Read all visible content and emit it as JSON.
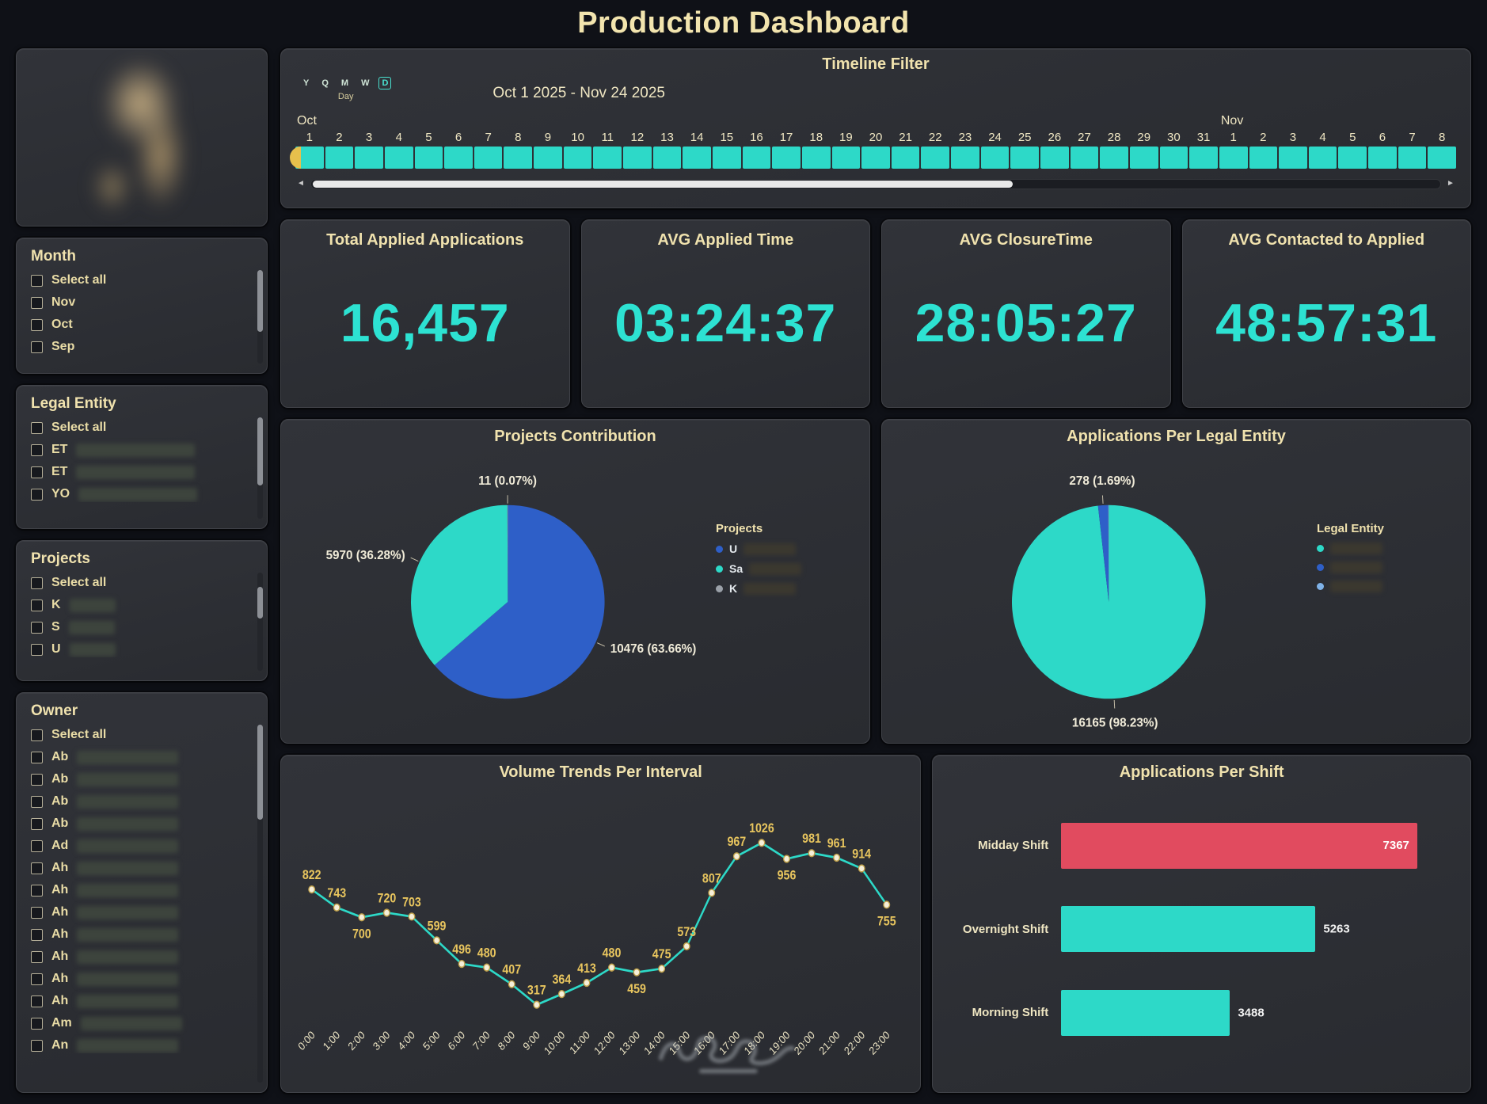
{
  "page_title": "Production Dashboard",
  "colors": {
    "teal": "#2dd9c8",
    "blue": "#2e5fc8",
    "red": "#e14b5f",
    "cream": "#efe3b2",
    "yellow_label": "#e8c55e"
  },
  "sidebar": {
    "filters": [
      {
        "title": "Month",
        "items": [
          {
            "label": "Select all"
          },
          {
            "label": "Nov"
          },
          {
            "label": "Oct"
          },
          {
            "label": "Sep"
          }
        ]
      },
      {
        "title": "Legal Entity",
        "items": [
          {
            "label": "Select all"
          },
          {
            "label": "ET",
            "redacted": true
          },
          {
            "label": "ET",
            "redacted": true
          },
          {
            "label": "YO",
            "redacted": true
          }
        ]
      },
      {
        "title": "Projects",
        "items": [
          {
            "label": "Select all"
          },
          {
            "label": "K",
            "redacted": true
          },
          {
            "label": "S",
            "redacted": true
          },
          {
            "label": "U",
            "redacted": true
          }
        ]
      },
      {
        "title": "Owner",
        "items": [
          {
            "label": "Select all"
          },
          {
            "label": "Ab",
            "redacted": true
          },
          {
            "label": "Ab",
            "redacted": true
          },
          {
            "label": "Ab",
            "redacted": true
          },
          {
            "label": "Ab",
            "redacted": true
          },
          {
            "label": "Ad",
            "redacted": true
          },
          {
            "label": "Ah",
            "redacted": true
          },
          {
            "label": "Ah",
            "redacted": true
          },
          {
            "label": "Ah",
            "redacted": true
          },
          {
            "label": "Ah",
            "redacted": true
          },
          {
            "label": "Ah",
            "redacted": true
          },
          {
            "label": "Ah",
            "redacted": true
          },
          {
            "label": "Ah",
            "redacted": true
          },
          {
            "label": "Am",
            "redacted": true
          },
          {
            "label": "An",
            "redacted": true
          }
        ]
      }
    ]
  },
  "timeline": {
    "title": "Timeline Filter",
    "granularity_buttons": [
      "Y",
      "Q",
      "M",
      "W",
      "D"
    ],
    "granularity_selected": "D",
    "granularity_label": "Day",
    "range_label": "Oct 1 2025 - Nov 24 2025",
    "months": [
      {
        "label": "Oct",
        "days": 31
      },
      {
        "label": "Nov",
        "days": 8
      }
    ]
  },
  "kpis": [
    {
      "title": "Total Applied Applications",
      "value": "16,457"
    },
    {
      "title": "AVG Applied Time",
      "value": "03:24:37"
    },
    {
      "title": "AVG ClosureTime",
      "value": "28:05:27"
    },
    {
      "title": "AVG Contacted to Applied",
      "value": "48:57:31"
    }
  ],
  "chart_data": [
    {
      "id": "projects-contribution",
      "type": "pie",
      "title": "Projects Contribution",
      "slices": [
        {
          "value": 10476,
          "pct": 63.66,
          "label": "10476 (63.66%)",
          "color": "#2e5fc8"
        },
        {
          "value": 5970,
          "pct": 36.28,
          "label": "5970 (36.28%)",
          "color": "#2dd9c8"
        },
        {
          "value": 11,
          "pct": 0.07,
          "label": "11 (0.07%)",
          "color": "#9aa0a8"
        }
      ],
      "legend": {
        "title": "Projects",
        "items": [
          {
            "prefix": "U",
            "color": "#2e5fc8",
            "redacted": true
          },
          {
            "prefix": "Sa",
            "color": "#2dd9c8",
            "redacted": true
          },
          {
            "prefix": "K",
            "color": "#9aa0a8",
            "redacted": true
          }
        ]
      }
    },
    {
      "id": "applications-per-legal-entity",
      "type": "pie",
      "title": "Applications Per Legal Entity",
      "slices": [
        {
          "value": 16165,
          "pct": 98.23,
          "label": "16165 (98.23%)",
          "color": "#2dd9c8"
        },
        {
          "value": 278,
          "pct": 1.69,
          "label": "278 (1.69%)",
          "color": "#2e5fc8"
        },
        {
          "pct": 0.08,
          "label": "",
          "color": "#7fb2e8"
        }
      ],
      "legend": {
        "title": "Legal Entity",
        "items": [
          {
            "prefix": "",
            "color": "#2dd9c8",
            "redacted": true
          },
          {
            "prefix": "",
            "color": "#2e5fc8",
            "redacted": true
          },
          {
            "prefix": "",
            "color": "#7fb2e8",
            "redacted": true
          }
        ]
      }
    },
    {
      "id": "volume-trends-per-interval",
      "type": "line",
      "title": "Volume Trends Per Interval",
      "x": [
        "0:00",
        "1:00",
        "2:00",
        "3:00",
        "4:00",
        "5:00",
        "6:00",
        "7:00",
        "8:00",
        "9:00",
        "10:00",
        "11:00",
        "12:00",
        "13:00",
        "14:00",
        "15:00",
        "16:00",
        "17:00",
        "18:00",
        "19:00",
        "20:00",
        "21:00",
        "22:00",
        "23:00"
      ],
      "values": [
        822,
        743,
        700,
        720,
        703,
        599,
        496,
        480,
        407,
        317,
        364,
        413,
        480,
        459,
        475,
        573,
        807,
        967,
        1026,
        956,
        981,
        961,
        914,
        755
      ],
      "ylim": [
        0,
        1100
      ],
      "line_color": "#2dd9c8",
      "label_color": "#e8c55e",
      "grid": false,
      "legend_position": "none"
    },
    {
      "id": "applications-per-shift",
      "type": "bar",
      "title": "Applications Per Shift",
      "orientation": "horizontal",
      "categories": [
        "Midday Shift",
        "Overnight Shift",
        "Morning Shift"
      ],
      "values": [
        7367,
        5263,
        3488
      ],
      "colors": [
        "#e14b5f",
        "#2dd9c8",
        "#2dd9c8"
      ],
      "xlim": [
        0,
        7500
      ]
    }
  ]
}
